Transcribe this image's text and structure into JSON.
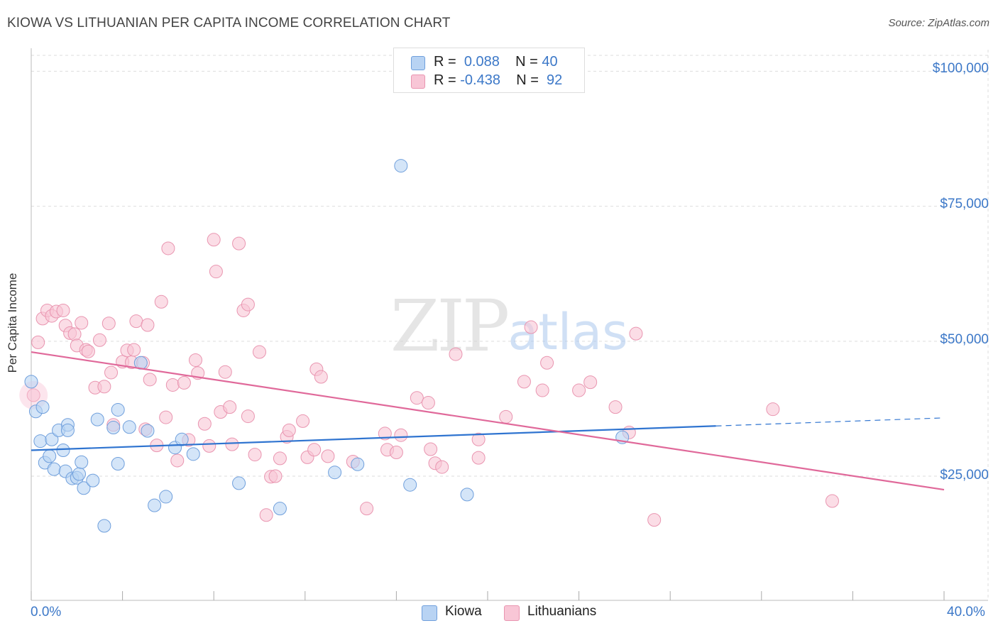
{
  "title": "KIOWA VS LITHUANIAN PER CAPITA INCOME CORRELATION CHART",
  "source": "Source: ZipAtlas.com",
  "watermark": {
    "zip": "ZIP",
    "atlas": "atlas"
  },
  "legend": {
    "rows": [
      {
        "r_label": "R =",
        "r_value": "0.088",
        "n_label": "N =",
        "n_value": "40"
      },
      {
        "r_label": "R =",
        "r_value": "-0.438",
        "n_label": "N =",
        "n_value": "92"
      }
    ],
    "series": [
      "Kiowa",
      "Lithuanians"
    ]
  },
  "colors": {
    "kiowa_fill": "#b8d3f3",
    "kiowa_stroke": "#6f9fdc",
    "kiowa_line": "#2f74d0",
    "lith_fill": "#f8c6d6",
    "lith_stroke": "#e995b0",
    "lith_line": "#e0699a",
    "tick_text": "#3c78c8",
    "grid": "#dddddd"
  },
  "chart_data": {
    "type": "scatter",
    "title": "KIOWA VS LITHUANIAN PER CAPITA INCOME CORRELATION CHART",
    "xlabel": "",
    "ylabel": "Per Capita Income",
    "x_ticks": [
      "0.0%",
      "40.0%"
    ],
    "y_ticks": [
      "$100,000",
      "$75,000",
      "$50,000",
      "$25,000"
    ],
    "y_tick_values": [
      100000,
      75000,
      50000,
      25000
    ],
    "xlim": [
      0,
      40
    ],
    "ylim": [
      2000,
      104000
    ],
    "grid": true,
    "legend_position": "top-center",
    "series": [
      {
        "name": "Kiowa",
        "r": 0.088,
        "n": 40,
        "points": [
          [
            0.0,
            42500
          ],
          [
            0.2,
            37000
          ],
          [
            0.5,
            37800
          ],
          [
            0.4,
            31500
          ],
          [
            0.6,
            27500
          ],
          [
            0.8,
            28700
          ],
          [
            0.9,
            31800
          ],
          [
            1.0,
            26300
          ],
          [
            1.2,
            33500
          ],
          [
            1.4,
            29800
          ],
          [
            1.5,
            25900
          ],
          [
            1.6,
            34500
          ],
          [
            1.6,
            33500
          ],
          [
            1.8,
            24600
          ],
          [
            2.0,
            24700
          ],
          [
            2.1,
            25400
          ],
          [
            2.2,
            27600
          ],
          [
            2.3,
            22800
          ],
          [
            2.7,
            24200
          ],
          [
            2.9,
            35500
          ],
          [
            3.2,
            15800
          ],
          [
            3.6,
            34000
          ],
          [
            3.8,
            37300
          ],
          [
            3.8,
            27300
          ],
          [
            4.3,
            34100
          ],
          [
            4.8,
            46000
          ],
          [
            5.1,
            33400
          ],
          [
            5.4,
            19600
          ],
          [
            5.9,
            21200
          ],
          [
            6.3,
            30300
          ],
          [
            6.6,
            31800
          ],
          [
            7.1,
            29100
          ],
          [
            9.1,
            23700
          ],
          [
            10.9,
            19000
          ],
          [
            13.3,
            25700
          ],
          [
            14.3,
            27200
          ],
          [
            16.2,
            82500
          ],
          [
            16.6,
            23400
          ],
          [
            19.1,
            21600
          ],
          [
            25.9,
            32200
          ]
        ],
        "trend": {
          "x0": 0.0,
          "y0": 29800,
          "x1": 30.0,
          "y1": 34300,
          "dash_x1": 40.0,
          "dash_y1": 35800
        }
      },
      {
        "name": "Lithuanians",
        "r": -0.438,
        "n": 92,
        "points": [
          [
            0.1,
            40000
          ],
          [
            0.3,
            49800
          ],
          [
            0.5,
            54200
          ],
          [
            0.7,
            55700
          ],
          [
            0.9,
            54700
          ],
          [
            1.1,
            55500
          ],
          [
            1.4,
            55700
          ],
          [
            1.5,
            52900
          ],
          [
            1.7,
            51500
          ],
          [
            1.9,
            51300
          ],
          [
            2.0,
            49200
          ],
          [
            2.2,
            53400
          ],
          [
            2.4,
            48400
          ],
          [
            2.5,
            48100
          ],
          [
            2.8,
            41400
          ],
          [
            3.0,
            50200
          ],
          [
            3.2,
            41600
          ],
          [
            3.4,
            53300
          ],
          [
            3.5,
            44200
          ],
          [
            3.6,
            34500
          ],
          [
            4.0,
            46200
          ],
          [
            4.2,
            48300
          ],
          [
            4.4,
            46100
          ],
          [
            4.5,
            48400
          ],
          [
            4.6,
            53700
          ],
          [
            4.9,
            46000
          ],
          [
            5.0,
            33700
          ],
          [
            5.1,
            53000
          ],
          [
            5.2,
            42900
          ],
          [
            5.5,
            30700
          ],
          [
            5.7,
            57300
          ],
          [
            5.9,
            35900
          ],
          [
            6.0,
            67200
          ],
          [
            6.2,
            41900
          ],
          [
            6.4,
            27900
          ],
          [
            6.7,
            42300
          ],
          [
            6.9,
            31700
          ],
          [
            7.2,
            46500
          ],
          [
            7.3,
            44100
          ],
          [
            7.6,
            34700
          ],
          [
            7.8,
            30600
          ],
          [
            8.0,
            68800
          ],
          [
            8.1,
            62900
          ],
          [
            8.3,
            36900
          ],
          [
            8.5,
            44300
          ],
          [
            8.7,
            37800
          ],
          [
            8.8,
            30900
          ],
          [
            9.1,
            68100
          ],
          [
            9.3,
            55700
          ],
          [
            9.5,
            56800
          ],
          [
            9.5,
            36100
          ],
          [
            9.8,
            29000
          ],
          [
            10.0,
            48000
          ],
          [
            10.3,
            17800
          ],
          [
            10.5,
            24900
          ],
          [
            10.7,
            25000
          ],
          [
            10.9,
            28300
          ],
          [
            11.2,
            32300
          ],
          [
            11.3,
            33500
          ],
          [
            11.9,
            35200
          ],
          [
            12.1,
            28500
          ],
          [
            12.4,
            29900
          ],
          [
            12.5,
            44800
          ],
          [
            12.7,
            43400
          ],
          [
            13.0,
            28700
          ],
          [
            14.1,
            27700
          ],
          [
            14.7,
            19000
          ],
          [
            15.5,
            32900
          ],
          [
            15.6,
            29900
          ],
          [
            16.0,
            29400
          ],
          [
            16.2,
            32600
          ],
          [
            16.9,
            39500
          ],
          [
            17.4,
            38600
          ],
          [
            17.5,
            30000
          ],
          [
            17.7,
            27400
          ],
          [
            18.0,
            26700
          ],
          [
            18.6,
            47600
          ],
          [
            19.6,
            31800
          ],
          [
            19.6,
            28400
          ],
          [
            20.8,
            36000
          ],
          [
            21.6,
            42500
          ],
          [
            21.9,
            52600
          ],
          [
            22.4,
            40900
          ],
          [
            22.6,
            46000
          ],
          [
            24.0,
            40900
          ],
          [
            24.5,
            42400
          ],
          [
            25.6,
            37800
          ],
          [
            26.2,
            33100
          ],
          [
            26.5,
            51400
          ],
          [
            27.3,
            16900
          ],
          [
            32.5,
            37400
          ],
          [
            35.1,
            20400
          ]
        ],
        "trend": {
          "x0": 0.0,
          "y0": 48000,
          "x1": 40.0,
          "y1": 22500
        }
      }
    ]
  }
}
